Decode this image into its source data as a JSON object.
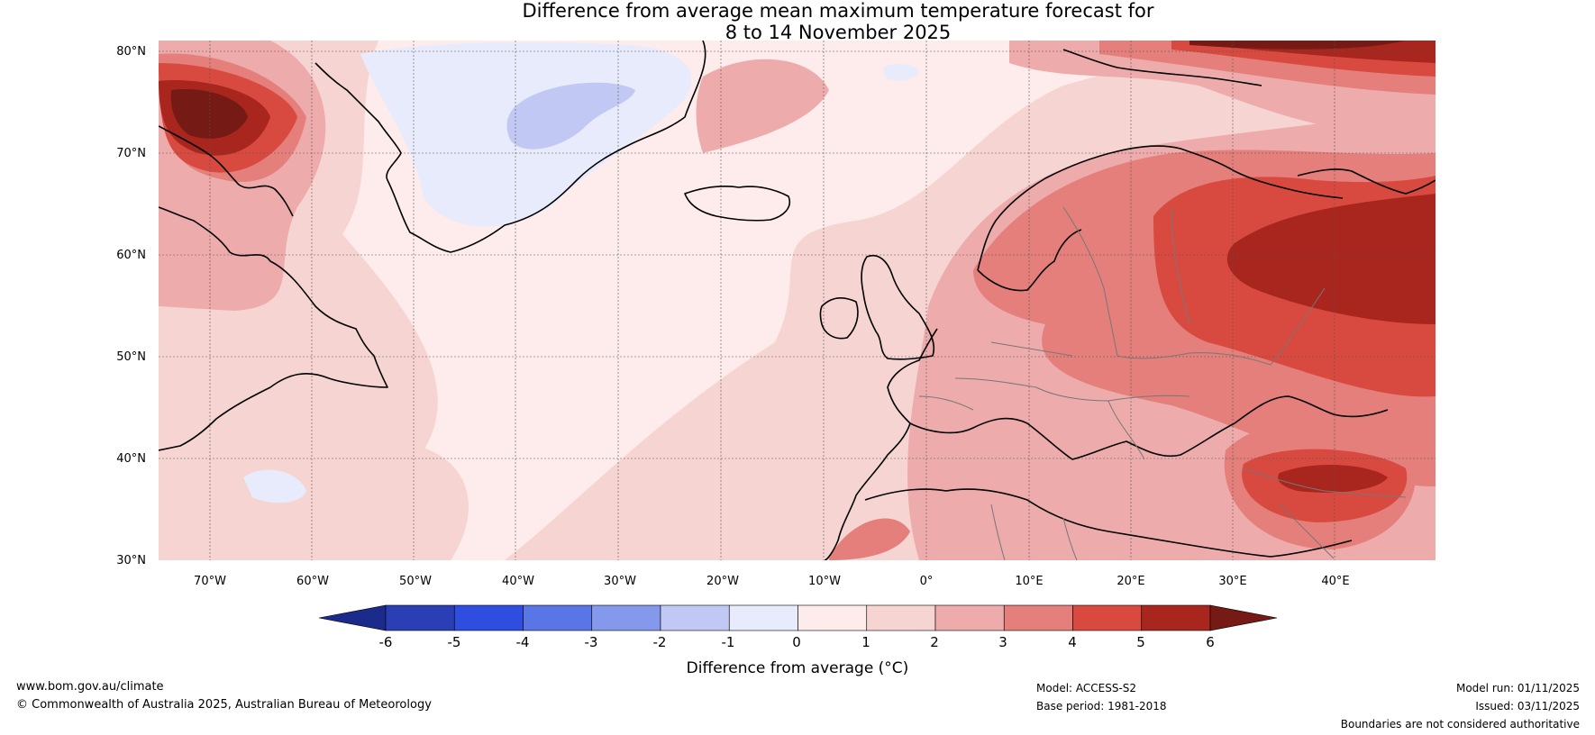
{
  "title": {
    "line1": "Difference from average mean maximum temperature forecast for",
    "line2": "8 to 14 November 2025"
  },
  "map": {
    "lat_labels": [
      "80°N",
      "70°N",
      "60°N",
      "50°N",
      "40°N",
      "30°N"
    ],
    "lon_labels": [
      "70°W",
      "60°W",
      "50°W",
      "40°W",
      "30°W",
      "20°W",
      "10°W",
      "0°",
      "10°E",
      "20°E",
      "30°E",
      "40°E"
    ]
  },
  "legend": {
    "ticks": [
      "-6",
      "-5",
      "-4",
      "-3",
      "-2",
      "-1",
      "0",
      "1",
      "2",
      "3",
      "4",
      "5",
      "6"
    ],
    "colors": [
      "#1c2a8c",
      "#2a3fb4",
      "#2f4ee0",
      "#5a75e6",
      "#8499ec",
      "#c0c8f3",
      "#e8ebfb",
      "#fdeceb",
      "#f6d4d2",
      "#eeabab",
      "#e47f7b",
      "#d84a3f",
      "#a8261e",
      "#751a14"
    ],
    "label": "Difference from average (°C)"
  },
  "footer": {
    "website": "www.bom.gov.au/climate",
    "copyright": "© Commonwealth of Australia 2025, Australian Bureau of Meteorology",
    "model": "Model: ACCESS-S2",
    "base_period": "Base period: 1981-2018",
    "model_run": "Model run: 01/11/2025",
    "issued": "Issued: 03/11/2025",
    "disclaimer": "Boundaries are not considered authoritative"
  }
}
